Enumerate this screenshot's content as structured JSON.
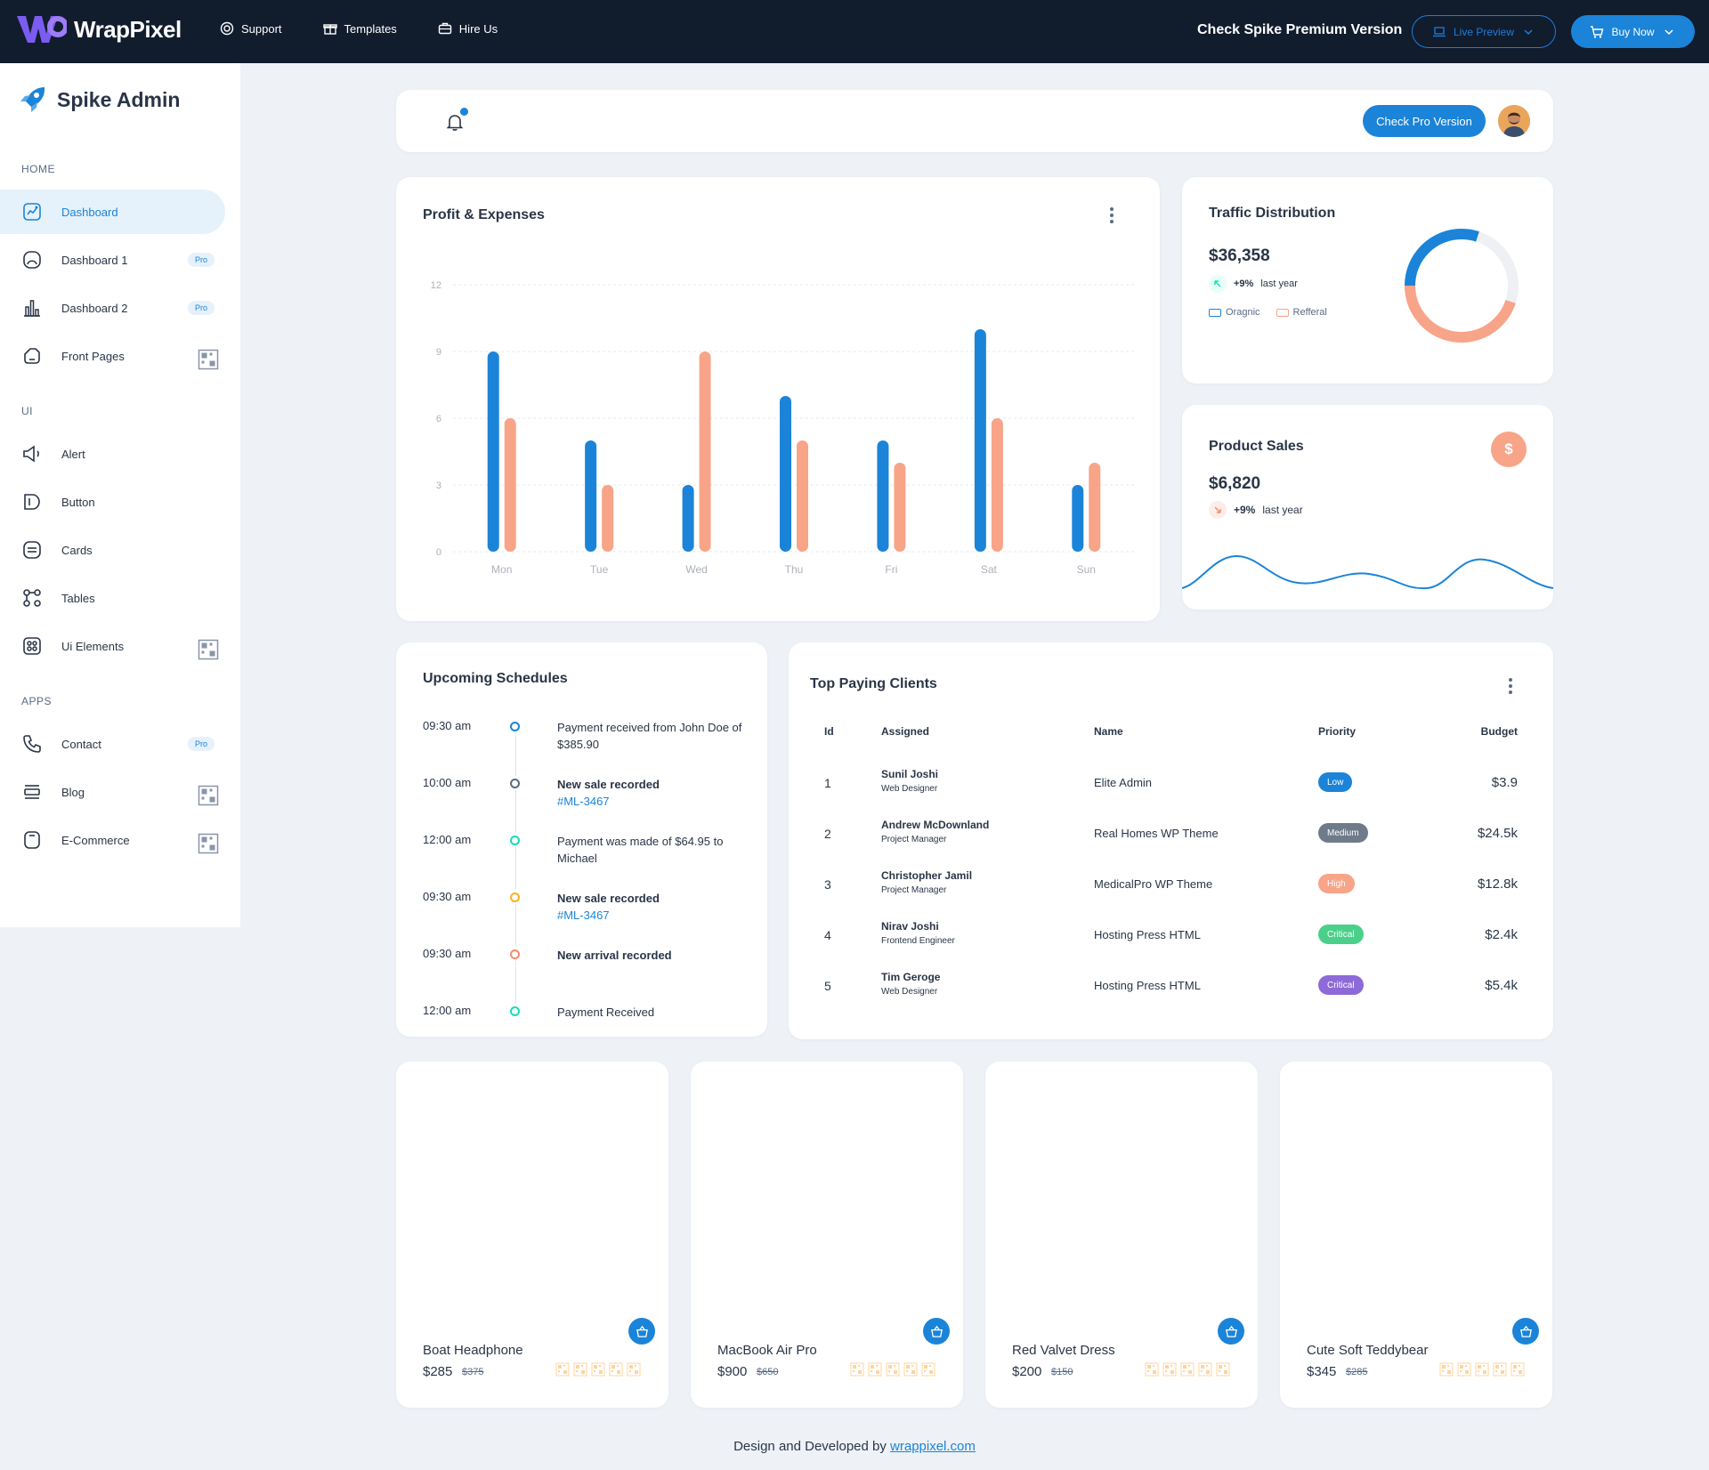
{
  "topbar": {
    "brand": "WrapPixel",
    "links": [
      {
        "label": "Support",
        "icon": "lifebuoy-icon"
      },
      {
        "label": "Templates",
        "icon": "gift-icon"
      },
      {
        "label": "Hire Us",
        "icon": "briefcase-icon"
      }
    ],
    "premium_text": "Check Spike Premium Version",
    "live_preview": "Live Preview",
    "buy_now": "Buy Now"
  },
  "sidebar": {
    "brand": "Spike Admin",
    "sections": [
      {
        "title": "HOME",
        "items": [
          {
            "label": "Dashboard",
            "icon": "chart-icon",
            "badge": "",
            "active": true
          },
          {
            "label": "Dashboard 1",
            "icon": "aperture-icon",
            "badge": "Pro"
          },
          {
            "label": "Dashboard 2",
            "icon": "bar-chart-icon",
            "badge": "Pro"
          },
          {
            "label": "Front Pages",
            "icon": "layout-icon",
            "badge": "qr"
          }
        ]
      },
      {
        "title": "UI",
        "items": [
          {
            "label": "Alert",
            "icon": "speaker-icon",
            "badge": ""
          },
          {
            "label": "Button",
            "icon": "tag-icon",
            "badge": ""
          },
          {
            "label": "Cards",
            "icon": "cards-icon",
            "badge": ""
          },
          {
            "label": "Tables",
            "icon": "table-icon",
            "badge": ""
          },
          {
            "label": "Ui Elements",
            "icon": "grid-icon",
            "badge": "qr"
          }
        ]
      },
      {
        "title": "APPS",
        "items": [
          {
            "label": "Contact",
            "icon": "phone-icon",
            "badge": "Pro"
          },
          {
            "label": "Blog",
            "icon": "blog-icon",
            "badge": "qr"
          },
          {
            "label": "E-Commerce",
            "icon": "bag-icon",
            "badge": "qr"
          }
        ]
      }
    ]
  },
  "header": {
    "pro_button": "Check Pro Version"
  },
  "profit": {
    "title": "Profit & Expenses"
  },
  "chart_data": {
    "type": "bar",
    "categories": [
      "Mon",
      "Tue",
      "Wed",
      "Thu",
      "Fri",
      "Sat",
      "Sun"
    ],
    "series": [
      {
        "color": "#1b84d8",
        "values": [
          9,
          5,
          3,
          7,
          5,
          10,
          3
        ]
      },
      {
        "color": "#f8a488",
        "values": [
          6,
          3,
          9,
          5,
          4,
          6,
          4
        ]
      }
    ],
    "yticks": [
      "0",
      "3",
      "6",
      "9",
      "12"
    ],
    "ylim": [
      0,
      12
    ],
    "grid": true
  },
  "traffic": {
    "title": "Traffic Distribution",
    "value": "$36,358",
    "trend_pct": "+9%",
    "trend_label": "last year",
    "legend": [
      {
        "label": "Oragnic",
        "color": "#1b84d8"
      },
      {
        "label": "Refferal",
        "color": "#f8a488"
      }
    ],
    "donut": {
      "blue": 0.3,
      "orange": 0.45
    }
  },
  "sales": {
    "title": "Product Sales",
    "icon": "$",
    "value": "$6,820",
    "trend_pct": "+9%",
    "trend_label": "last year"
  },
  "schedule": {
    "title": "Upcoming Schedules",
    "items": [
      {
        "time": "09:30 am",
        "color": "#1b84d8",
        "text": "Payment received from John Doe of $385.90",
        "bold": false,
        "link": ""
      },
      {
        "time": "10:00 am",
        "color": "#5a6a85",
        "text": "New sale recorded",
        "bold": true,
        "link": "#ML-3467"
      },
      {
        "time": "12:00 am",
        "color": "#13deb9",
        "text": "Payment was made of $64.95 to Michael",
        "bold": false,
        "link": ""
      },
      {
        "time": "09:30 am",
        "color": "#ffae1f",
        "text": "New sale recorded",
        "bold": true,
        "link": "#ML-3467"
      },
      {
        "time": "09:30 am",
        "color": "#fa896b",
        "text": "New arrival recorded",
        "bold": true,
        "link": ""
      },
      {
        "time": "12:00 am",
        "color": "#13deb9",
        "text": "Payment Received",
        "bold": false,
        "link": ""
      }
    ]
  },
  "clients": {
    "title": "Top Paying Clients",
    "headers": {
      "id": "Id",
      "assigned": "Assigned",
      "name": "Name",
      "priority": "Priority",
      "budget": "Budget"
    },
    "rows": [
      {
        "id": "1",
        "assigned": "Sunil Joshi",
        "role": "Web Designer",
        "name": "Elite Admin",
        "priority": "Low",
        "color": "#1b84d8",
        "budget": "$3.9"
      },
      {
        "id": "2",
        "assigned": "Andrew McDownland",
        "role": "Project Manager",
        "name": "Real Homes WP Theme",
        "priority": "Medium",
        "color": "#6f7b8b",
        "budget": "$24.5k"
      },
      {
        "id": "3",
        "assigned": "Christopher Jamil",
        "role": "Project Manager",
        "name": "MedicalPro WP Theme",
        "priority": "High",
        "color": "#f8a488",
        "budget": "$12.8k"
      },
      {
        "id": "4",
        "assigned": "Nirav Joshi",
        "role": "Frontend Engineer",
        "name": "Hosting Press HTML",
        "priority": "Critical",
        "color": "#4bd08b",
        "budget": "$2.4k"
      },
      {
        "id": "5",
        "assigned": "Tim Geroge",
        "role": "Web Designer",
        "name": "Hosting Press HTML",
        "priority": "Critical",
        "color": "#8d6ad8",
        "budget": "$5.4k"
      }
    ]
  },
  "products": [
    {
      "name": "Boat Headphone",
      "price": "$285",
      "old": "$375"
    },
    {
      "name": "MacBook Air Pro",
      "price": "$900",
      "old": "$650"
    },
    {
      "name": "Red Valvet Dress",
      "price": "$200",
      "old": "$150"
    },
    {
      "name": "Cute Soft Teddybear",
      "price": "$345",
      "old": "$285"
    }
  ],
  "footer": {
    "text": "Design and Developed by ",
    "link": "wrappixel.com"
  }
}
